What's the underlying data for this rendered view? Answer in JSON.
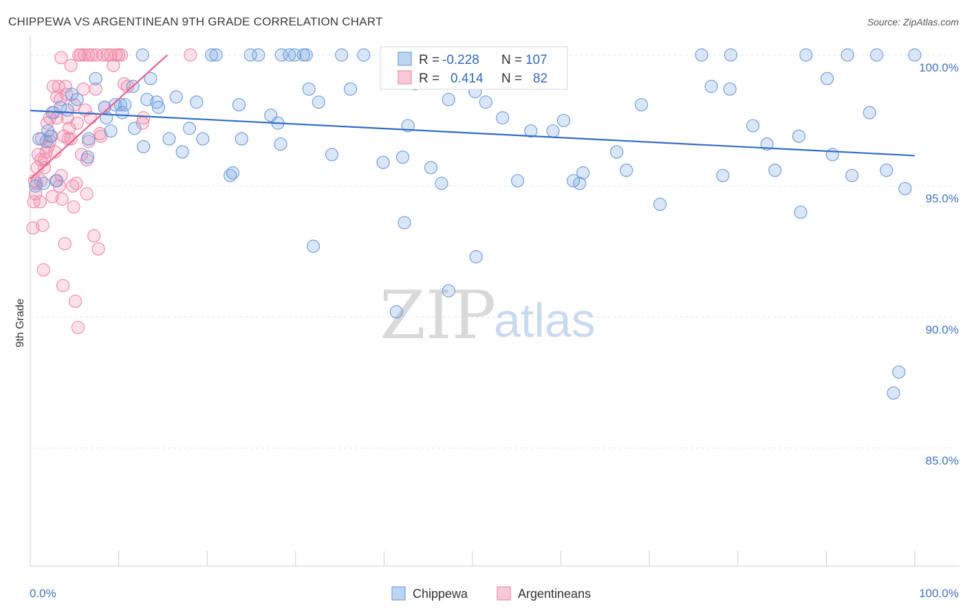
{
  "title": "CHIPPEWA VS ARGENTINEAN 9TH GRADE CORRELATION CHART",
  "source": "Source: ZipAtlas.com",
  "watermark": {
    "zip": "ZIP",
    "atlas": "atlas"
  },
  "colors": {
    "chippewa": "#6f9fe0",
    "chippewa_fill": "rgba(111,159,224,0.25)",
    "chippewa_line": "#2c6cc8",
    "argentineans": "#f08aaa",
    "argentineans_fill": "rgba(240,138,170,0.25)",
    "argentineans_line": "#e8608c",
    "axis_text": "#3d72c2"
  },
  "legend_box": {
    "rows": [
      {
        "r_label": "R =",
        "r_value": "-0.228",
        "n_label": "N =",
        "n_value": "107"
      },
      {
        "r_label": "R =",
        "r_value": "0.414",
        "n_label": "N =",
        "n_value": "82"
      }
    ]
  },
  "bottom_legend": [
    "Chippewa",
    "Argentineans"
  ],
  "chart_data": {
    "type": "scatter",
    "title": "CHIPPEWA VS ARGENTINEAN 9TH GRADE CORRELATION CHART",
    "xlabel": "",
    "ylabel": "9th Grade",
    "xlim": [
      0,
      100
    ],
    "ylim": [
      80.5,
      100.7
    ],
    "x_tick_labels": [
      "0.0%",
      "100.0%"
    ],
    "y_ticks": [
      85,
      90,
      95,
      100
    ],
    "y_tick_labels": [
      "85.0%",
      "90.0%",
      "95.0%",
      "100.0%"
    ],
    "grid": true,
    "legend_position": "top-center",
    "series": [
      {
        "name": "Chippewa",
        "trend": [
          [
            0,
            97.88
          ],
          [
            100,
            96.16
          ]
        ],
        "points": [
          [
            1,
            96.8
          ],
          [
            1.5,
            95.1
          ],
          [
            1.8,
            96.7
          ],
          [
            2,
            97.1
          ],
          [
            2.3,
            96.9
          ],
          [
            2.5,
            97.8
          ],
          [
            3,
            95.2
          ],
          [
            3.4,
            98.0
          ],
          [
            4.2,
            97.9
          ],
          [
            4.7,
            98.5
          ],
          [
            5.3,
            98.3
          ],
          [
            6.5,
            96.1
          ],
          [
            6.6,
            96.8
          ],
          [
            7.4,
            99.1
          ],
          [
            8.6,
            97.6
          ],
          [
            8.4,
            98.0
          ],
          [
            9.1,
            97.1
          ],
          [
            9.6,
            98.1
          ],
          [
            10.2,
            98.1
          ],
          [
            10.4,
            97.8
          ],
          [
            10.7,
            98.1
          ],
          [
            11.6,
            98.8
          ],
          [
            11.8,
            97.2
          ],
          [
            12.7,
            100
          ],
          [
            12.8,
            96.5
          ],
          [
            13.2,
            98.3
          ],
          [
            13.6,
            99.1
          ],
          [
            14.3,
            98.2
          ],
          [
            14.5,
            98.0
          ],
          [
            15.7,
            96.8
          ],
          [
            16.5,
            98.4
          ],
          [
            17.2,
            96.3
          ],
          [
            18,
            97.2
          ],
          [
            18.8,
            98.2
          ],
          [
            19.5,
            96.8
          ],
          [
            20.5,
            100
          ],
          [
            21,
            100
          ],
          [
            22.6,
            95.4
          ],
          [
            22.9,
            95.5
          ],
          [
            23.6,
            98.1
          ],
          [
            23.9,
            96.8
          ],
          [
            24.9,
            100
          ],
          [
            25.8,
            100
          ],
          [
            27.2,
            97.7
          ],
          [
            28,
            97.4
          ],
          [
            28.3,
            96.6
          ],
          [
            28.4,
            100
          ],
          [
            29.3,
            100
          ],
          [
            29.9,
            100
          ],
          [
            30.9,
            100
          ],
          [
            31.2,
            100
          ],
          [
            31.5,
            98.7
          ],
          [
            32,
            92.7
          ],
          [
            32.6,
            98.2
          ],
          [
            34.1,
            96.2
          ],
          [
            35.2,
            100
          ],
          [
            36.2,
            98.7
          ],
          [
            37.7,
            100
          ],
          [
            39.9,
            95.9
          ],
          [
            41.4,
            90.2
          ],
          [
            42.1,
            96.1
          ],
          [
            42.3,
            93.6
          ],
          [
            42.7,
            97.3
          ],
          [
            43.5,
            98.9
          ],
          [
            45.3,
            95.7
          ],
          [
            46.5,
            95.1
          ],
          [
            47.3,
            91.0
          ],
          [
            47.3,
            98.3
          ],
          [
            49.5,
            99.8
          ],
          [
            50.3,
            98.6
          ],
          [
            50.4,
            92.3
          ],
          [
            51.5,
            98.2
          ],
          [
            53.4,
            97.6
          ],
          [
            55.1,
            95.2
          ],
          [
            56.6,
            97.1
          ],
          [
            59.1,
            97.1
          ],
          [
            60.3,
            97.5
          ],
          [
            61.4,
            95.2
          ],
          [
            62.1,
            95.1
          ],
          [
            62.5,
            95.5
          ],
          [
            66.3,
            96.3
          ],
          [
            67.4,
            95.6
          ],
          [
            69.1,
            98.1
          ],
          [
            71.2,
            94.3
          ],
          [
            75.9,
            100
          ],
          [
            77,
            98.8
          ],
          [
            78.3,
            95.4
          ],
          [
            79.2,
            100
          ],
          [
            79.1,
            98.7
          ],
          [
            81.7,
            97.3
          ],
          [
            83.3,
            96.6
          ],
          [
            84.2,
            95.6
          ],
          [
            86.9,
            96.9
          ],
          [
            87.1,
            94.0
          ],
          [
            87.7,
            100
          ],
          [
            90.1,
            99.1
          ],
          [
            90.7,
            96.2
          ],
          [
            92.4,
            100
          ],
          [
            92.9,
            95.4
          ],
          [
            94.9,
            97.8
          ],
          [
            95.7,
            100
          ],
          [
            96.8,
            95.6
          ],
          [
            97.6,
            87.1
          ],
          [
            98.2,
            87.9
          ],
          [
            98.9,
            94.9
          ],
          [
            100,
            100
          ],
          [
            0.6,
            95.0
          ]
        ]
      },
      {
        "name": "Argentineans",
        "trend": [
          [
            0,
            95.27
          ],
          [
            15.5,
            100.0
          ]
        ],
        "points": [
          [
            0.3,
            93.4
          ],
          [
            0.4,
            94.4
          ],
          [
            0.6,
            94.7
          ],
          [
            0.7,
            95.1
          ],
          [
            0.8,
            95.7
          ],
          [
            0.9,
            96.2
          ],
          [
            1.1,
            94.4
          ],
          [
            1.2,
            95.2
          ],
          [
            1.2,
            96.0
          ],
          [
            1.4,
            93.5
          ],
          [
            1.5,
            91.8
          ],
          [
            1.6,
            95.7
          ],
          [
            1.6,
            96.0
          ],
          [
            1.8,
            96.3
          ],
          [
            1.9,
            97.4
          ],
          [
            2,
            96.5
          ],
          [
            2.2,
            97.6
          ],
          [
            2.2,
            96.7
          ],
          [
            2.4,
            96.9
          ],
          [
            2.5,
            94.6
          ],
          [
            2.6,
            98.8
          ],
          [
            2.8,
            96.3
          ],
          [
            2.9,
            95.2
          ],
          [
            3,
            97.6
          ],
          [
            3,
            98.4
          ],
          [
            3.2,
            98.8
          ],
          [
            3.3,
            95.0
          ],
          [
            3.4,
            98.3
          ],
          [
            3.5,
            95.4
          ],
          [
            3.5,
            99.9
          ],
          [
            3.6,
            94.5
          ],
          [
            3.7,
            91.2
          ],
          [
            3.8,
            96.9
          ],
          [
            3.9,
            92.8
          ],
          [
            4,
            98.8
          ],
          [
            4.1,
            98.5
          ],
          [
            4.2,
            97.6
          ],
          [
            4.3,
            96.8
          ],
          [
            4.4,
            97.2
          ],
          [
            4.6,
            99.6
          ],
          [
            4.8,
            95.0
          ],
          [
            4.9,
            94.2
          ],
          [
            5,
            98.1
          ],
          [
            5.1,
            90.6
          ],
          [
            5.2,
            95.1
          ],
          [
            5.3,
            97.4
          ],
          [
            5.4,
            89.6
          ],
          [
            5.5,
            100
          ],
          [
            5.7,
            100
          ],
          [
            5.8,
            96.2
          ],
          [
            6,
            98.7
          ],
          [
            6.1,
            100
          ],
          [
            6.2,
            97.9
          ],
          [
            6.4,
            94.7
          ],
          [
            6.4,
            96.0
          ],
          [
            6.6,
            96.7
          ],
          [
            6.6,
            100
          ],
          [
            7,
            100
          ],
          [
            7.2,
            93.1
          ],
          [
            7.4,
            98.7
          ],
          [
            7.5,
            100
          ],
          [
            7.7,
            92.6
          ],
          [
            7.9,
            97.0
          ],
          [
            8,
            96.9
          ],
          [
            8.2,
            100
          ],
          [
            8.4,
            98.0
          ],
          [
            8.7,
            100
          ],
          [
            9.1,
            100
          ],
          [
            9.4,
            99.6
          ],
          [
            9.7,
            100
          ],
          [
            10,
            100
          ],
          [
            10.3,
            100
          ],
          [
            10.6,
            98.9
          ],
          [
            11,
            98.8
          ],
          [
            12.7,
            97.4
          ],
          [
            12.8,
            97.6
          ],
          [
            18.1,
            100
          ],
          [
            1.3,
            96.8
          ],
          [
            0.5,
            95.2
          ],
          [
            2.7,
            97.8
          ],
          [
            6.8,
            97.6
          ],
          [
            4.6,
            96.8
          ]
        ]
      }
    ]
  }
}
